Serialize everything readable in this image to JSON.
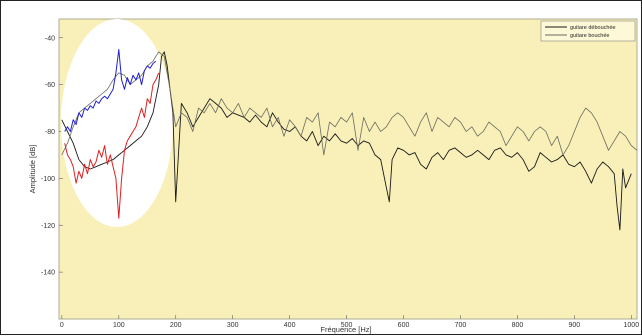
{
  "chart_data": {
    "type": "line",
    "xlabel": "Fréquence [Hz]",
    "ylabel": "Amplitude [dB]",
    "xlim": [
      -5,
      1010
    ],
    "ylim": [
      -160,
      -32
    ],
    "x_ticks": [
      0,
      100,
      200,
      300,
      400,
      500,
      600,
      700,
      800,
      900,
      1000
    ],
    "y_ticks": [
      -40,
      -60,
      -80,
      -100,
      -120,
      -140
    ],
    "grid": false,
    "background_color": "#f8f0b8",
    "legend_position": "top-right",
    "series": [
      {
        "name": "guitare débouchée",
        "color": "#1a1a1a",
        "x": [
          0,
          10,
          20,
          30,
          40,
          50,
          60,
          70,
          80,
          90,
          100,
          110,
          120,
          130,
          140,
          150,
          160,
          170,
          175,
          180,
          185,
          190,
          195,
          200,
          210,
          220,
          230,
          240,
          250,
          260,
          270,
          280,
          290,
          300,
          310,
          320,
          330,
          340,
          350,
          360,
          370,
          380,
          390,
          400,
          410,
          420,
          430,
          440,
          450,
          460,
          470,
          480,
          490,
          500,
          510,
          520,
          530,
          540,
          550,
          560,
          570,
          575,
          580,
          590,
          600,
          610,
          620,
          630,
          640,
          650,
          660,
          670,
          680,
          690,
          700,
          710,
          720,
          730,
          740,
          750,
          760,
          770,
          780,
          790,
          800,
          810,
          820,
          830,
          840,
          850,
          860,
          870,
          880,
          890,
          900,
          910,
          920,
          930,
          940,
          950,
          960,
          970,
          975,
          980,
          985,
          990,
          1000
        ],
        "y": [
          -75,
          -80,
          -85,
          -92,
          -95,
          -96,
          -95,
          -94,
          -93,
          -92,
          -90,
          -88,
          -86,
          -84,
          -82,
          -78,
          -72,
          -60,
          -48,
          -46,
          -52,
          -62,
          -72,
          -110,
          -68,
          -72,
          -78,
          -74,
          -70,
          -66,
          -68,
          -70,
          -74,
          -72,
          -73,
          -74,
          -76,
          -73,
          -76,
          -78,
          -72,
          -76,
          -79,
          -80,
          -78,
          -82,
          -84,
          -80,
          -86,
          -82,
          -84,
          -81,
          -84,
          -85,
          -83,
          -86,
          -84,
          -85,
          -90,
          -92,
          -104,
          -110,
          -92,
          -87,
          -88,
          -90,
          -89,
          -94,
          -96,
          -91,
          -89,
          -92,
          -88,
          -87,
          -89,
          -91,
          -90,
          -88,
          -90,
          -92,
          -88,
          -87,
          -90,
          -91,
          -89,
          -92,
          -97,
          -95,
          -89,
          -91,
          -93,
          -92,
          -90,
          -94,
          -95,
          -93,
          -97,
          -102,
          -96,
          -93,
          -95,
          -98,
          -112,
          -122,
          -96,
          -104,
          -98
        ]
      },
      {
        "name": "guitare bouchée",
        "color": "#6a6a60",
        "x": [
          0,
          10,
          20,
          30,
          40,
          50,
          60,
          70,
          80,
          90,
          100,
          110,
          120,
          130,
          140,
          150,
          160,
          170,
          180,
          190,
          200,
          210,
          220,
          230,
          240,
          250,
          260,
          270,
          280,
          290,
          300,
          310,
          320,
          330,
          340,
          350,
          360,
          370,
          380,
          390,
          400,
          410,
          420,
          430,
          440,
          450,
          460,
          470,
          480,
          490,
          500,
          510,
          520,
          530,
          540,
          550,
          560,
          570,
          580,
          590,
          600,
          610,
          620,
          630,
          640,
          650,
          660,
          670,
          680,
          690,
          700,
          710,
          720,
          730,
          740,
          750,
          760,
          770,
          780,
          790,
          800,
          810,
          820,
          830,
          840,
          850,
          860,
          870,
          880,
          890,
          900,
          910,
          920,
          930,
          940,
          950,
          960,
          970,
          980,
          990,
          1000,
          1010
        ],
        "y": [
          -90,
          -85,
          -78,
          -72,
          -70,
          -68,
          -66,
          -64,
          -62,
          -58,
          -55,
          -56,
          -60,
          -58,
          -56,
          -52,
          -50,
          -46,
          -48,
          -62,
          -78,
          -72,
          -74,
          -80,
          -70,
          -72,
          -68,
          -72,
          -66,
          -70,
          -72,
          -68,
          -74,
          -70,
          -72,
          -74,
          -70,
          -78,
          -74,
          -82,
          -75,
          -78,
          -82,
          -74,
          -76,
          -72,
          -90,
          -76,
          -78,
          -74,
          -76,
          -72,
          -88,
          -74,
          -80,
          -76,
          -80,
          -78,
          -74,
          -72,
          -74,
          -78,
          -82,
          -76,
          -72,
          -80,
          -74,
          -76,
          -78,
          -74,
          -76,
          -80,
          -78,
          -82,
          -80,
          -76,
          -78,
          -80,
          -86,
          -82,
          -78,
          -80,
          -84,
          -80,
          -78,
          -80,
          -86,
          -82,
          -90,
          -86,
          -80,
          -74,
          -70,
          -72,
          -76,
          -82,
          -88,
          -84,
          -80,
          -82,
          -86,
          -88
        ]
      },
      {
        "color": "#2020d0",
        "x": [
          5,
          10,
          15,
          20,
          25,
          30,
          35,
          40,
          45,
          50,
          55,
          60,
          65,
          70,
          75,
          80,
          85,
          90,
          95,
          100,
          105,
          110,
          115,
          120,
          125,
          130,
          135,
          140,
          145,
          150,
          155,
          160,
          165
        ],
        "y": [
          -80,
          -78,
          -80,
          -75,
          -77,
          -72,
          -74,
          -70,
          -71,
          -69,
          -70,
          -67,
          -68,
          -66,
          -65,
          -66,
          -64,
          -62,
          -55,
          -45,
          -58,
          -62,
          -57,
          -60,
          -56,
          -58,
          -55,
          -60,
          -54,
          -52,
          -53,
          -51,
          -50
        ]
      },
      {
        "color": "#e02020",
        "x": [
          5,
          10,
          15,
          20,
          25,
          30,
          35,
          40,
          45,
          50,
          55,
          60,
          65,
          70,
          75,
          80,
          85,
          90,
          95,
          100,
          105,
          110,
          115,
          120,
          125,
          130,
          135,
          140,
          145,
          150,
          155,
          160,
          165,
          170
        ],
        "y": [
          -85,
          -90,
          -92,
          -95,
          -102,
          -97,
          -100,
          -94,
          -98,
          -92,
          -95,
          -93,
          -88,
          -91,
          -86,
          -94,
          -90,
          -95,
          -100,
          -117,
          -100,
          -88,
          -84,
          -82,
          -80,
          -78,
          -74,
          -70,
          -74,
          -66,
          -68,
          -60,
          -58,
          -55
        ]
      }
    ]
  }
}
